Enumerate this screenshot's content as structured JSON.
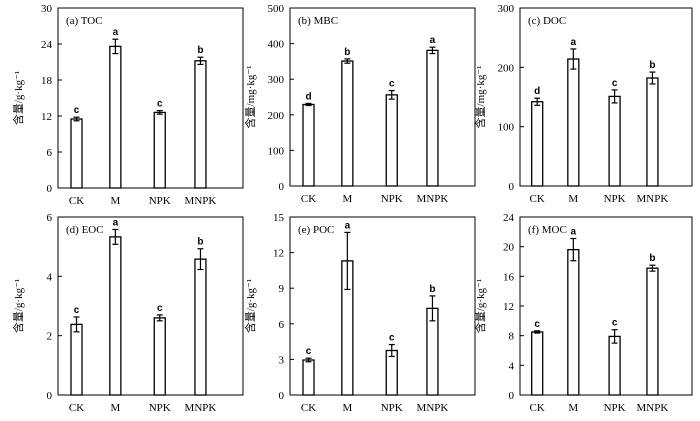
{
  "chart_data": [
    {
      "type": "bar",
      "title": "(a) TOC",
      "ylabel": "含量/g·kg⁻¹",
      "categories": [
        "CK",
        "M",
        "NPK",
        "MNPK"
      ],
      "values": [
        11.5,
        23.6,
        12.6,
        21.2
      ],
      "errors": [
        0.3,
        1.2,
        0.3,
        0.6
      ],
      "sig": [
        "c",
        "a",
        "c",
        "b"
      ],
      "ylim": [
        0,
        30
      ],
      "yticks": [
        0,
        6,
        12,
        18,
        24,
        30
      ]
    },
    {
      "type": "bar",
      "title": "(b) MBC",
      "ylabel": "含量/mg·kg⁻¹",
      "categories": [
        "CK",
        "M",
        "NPK",
        "MNPK"
      ],
      "values": [
        229,
        351,
        256,
        381
      ],
      "errors": [
        3,
        6,
        12,
        9
      ],
      "sig": [
        "d",
        "b",
        "c",
        "a"
      ],
      "ylim": [
        0,
        500
      ],
      "yticks": [
        0,
        100,
        200,
        300,
        400,
        500
      ]
    },
    {
      "type": "bar",
      "title": "(c) DOC",
      "ylabel": "含量/mg·kg⁻¹",
      "categories": [
        "CK",
        "M",
        "NPK",
        "MNPK"
      ],
      "values": [
        142,
        214,
        151,
        182
      ],
      "errors": [
        6,
        17,
        11,
        10
      ],
      "sig": [
        "d",
        "a",
        "c",
        "b"
      ],
      "ylim": [
        0,
        300
      ],
      "yticks": [
        0,
        100,
        200,
        300
      ]
    },
    {
      "type": "bar",
      "title": "(d) EOC",
      "ylabel": "含量/g·kg⁻¹",
      "categories": [
        "CK",
        "M",
        "NPK",
        "MNPK"
      ],
      "values": [
        2.38,
        5.33,
        2.6,
        4.58
      ],
      "errors": [
        0.25,
        0.25,
        0.1,
        0.35
      ],
      "sig": [
        "c",
        "a",
        "c",
        "b"
      ],
      "ylim": [
        0,
        6
      ],
      "yticks": [
        0,
        2,
        4,
        6
      ]
    },
    {
      "type": "bar",
      "title": "(e) POC",
      "ylabel": "含量/g·kg⁻¹",
      "categories": [
        "CK",
        "M",
        "NPK",
        "MNPK"
      ],
      "values": [
        2.95,
        11.3,
        3.75,
        7.3
      ],
      "errors": [
        0.15,
        2.4,
        0.5,
        1.05
      ],
      "sig": [
        "c",
        "a",
        "c",
        "b"
      ],
      "ylim": [
        0,
        15
      ],
      "yticks": [
        0,
        3,
        6,
        9,
        12,
        15
      ]
    },
    {
      "type": "bar",
      "title": "(f) MOC",
      "ylabel": "含量/g·kg⁻¹",
      "categories": [
        "CK",
        "M",
        "NPK",
        "MNPK"
      ],
      "values": [
        8.5,
        19.6,
        7.9,
        17.1
      ],
      "errors": [
        0.15,
        1.5,
        0.9,
        0.4
      ],
      "sig": [
        "c",
        "a",
        "c",
        "b"
      ],
      "ylim": [
        0,
        24
      ],
      "yticks": [
        0,
        4,
        8,
        12,
        16,
        20,
        24
      ]
    }
  ]
}
